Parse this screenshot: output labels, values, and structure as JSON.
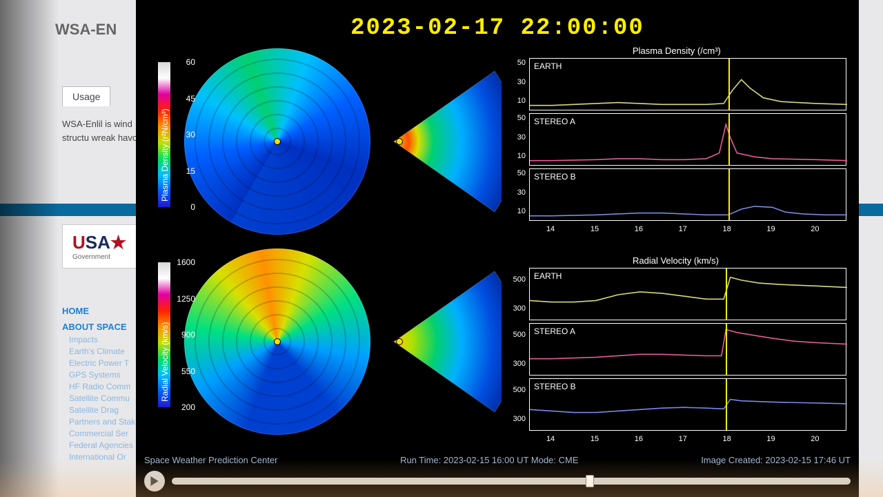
{
  "bg": {
    "header": "WSA-EN",
    "tab": "Usage",
    "text": "WSA-Enlil is\nwind structu\nwreak havo",
    "logo_usa": "USA",
    "logo_gov": "Government",
    "nav_l1_home": "HOME",
    "nav_l1_about": "ABOUT SPACE",
    "nav_items": [
      "Impacts",
      "Earth's Climate",
      "Electric Power T",
      "GPS Systems",
      "HF Radio Comm",
      "Satellite Commu",
      "Satellite Drag",
      "Partners and Stak",
      "Commercial Ser",
      "Federal Agencies",
      "International Or"
    ]
  },
  "timestamp": "2023-02-17  22:00:00",
  "panel_bg": "#000000",
  "timestamp_color": "#ffee00",
  "density": {
    "label": "Plasma Density (r²N/cm³)",
    "ticks": [
      0,
      15,
      30,
      45,
      60
    ],
    "colorbar_stops": [
      "#2218d0",
      "#0060ff",
      "#00c0ff",
      "#00e060",
      "#c0e000",
      "#ff9000",
      "#ff2000",
      "#e000a0",
      "#ffffff",
      "#d8d8d8"
    ]
  },
  "velocity": {
    "label": "Radial Velocity (km/s)",
    "ticks": [
      200,
      550,
      900,
      1250,
      1600
    ],
    "colorbar_stops": [
      "#2218d0",
      "#0060ff",
      "#00c0ff",
      "#00e060",
      "#c0e000",
      "#ff9000",
      "#ff2000",
      "#e000a0",
      "#ffffff",
      "#d8d8d8"
    ]
  },
  "density_group": {
    "title": "Plasma Density (/cm³)",
    "yticks": [
      10,
      30,
      50
    ],
    "xticks": [
      14,
      15,
      16,
      17,
      18,
      19,
      20
    ],
    "marker_x": 18.0,
    "panels": [
      {
        "label": "EARTH",
        "color": "#d9d97a",
        "pts": [
          [
            13.5,
            6
          ],
          [
            14,
            6
          ],
          [
            14.5,
            7
          ],
          [
            15,
            8
          ],
          [
            15.5,
            9
          ],
          [
            16,
            8
          ],
          [
            16.5,
            7
          ],
          [
            17,
            7
          ],
          [
            17.5,
            7
          ],
          [
            17.9,
            8
          ],
          [
            18.1,
            22
          ],
          [
            18.3,
            33
          ],
          [
            18.5,
            24
          ],
          [
            18.8,
            14
          ],
          [
            19.2,
            10
          ],
          [
            20,
            8
          ],
          [
            20.7,
            7
          ]
        ]
      },
      {
        "label": "STEREO A",
        "color": "#e85a9a",
        "pts": [
          [
            13.5,
            6
          ],
          [
            14,
            6
          ],
          [
            15,
            7
          ],
          [
            15.5,
            8
          ],
          [
            16,
            8
          ],
          [
            16.5,
            7
          ],
          [
            17,
            7
          ],
          [
            17.5,
            8
          ],
          [
            17.8,
            14
          ],
          [
            17.95,
            44
          ],
          [
            18.05,
            30
          ],
          [
            18.2,
            14
          ],
          [
            18.6,
            10
          ],
          [
            19,
            8
          ],
          [
            20,
            7
          ],
          [
            20.7,
            6
          ]
        ]
      },
      {
        "label": "STEREO B",
        "color": "#7a8ae8",
        "pts": [
          [
            13.5,
            6
          ],
          [
            14,
            6
          ],
          [
            15,
            7
          ],
          [
            15.5,
            8
          ],
          [
            16,
            9
          ],
          [
            16.5,
            9
          ],
          [
            17,
            8
          ],
          [
            17.5,
            7
          ],
          [
            18,
            7
          ],
          [
            18.3,
            13
          ],
          [
            18.6,
            16
          ],
          [
            19,
            15
          ],
          [
            19.3,
            10
          ],
          [
            19.7,
            8
          ],
          [
            20.2,
            7
          ],
          [
            20.7,
            7
          ]
        ]
      }
    ]
  },
  "velocity_group": {
    "title": "Radial Velocity (km/s)",
    "yticks": [
      300,
      500
    ],
    "xticks": [
      14,
      15,
      16,
      17,
      18,
      19,
      20
    ],
    "marker_x": 17.95,
    "panels": [
      {
        "label": "EARTH",
        "color": "#d9d97a",
        "pts": [
          [
            13.5,
            360
          ],
          [
            14,
            350
          ],
          [
            14.5,
            350
          ],
          [
            15,
            360
          ],
          [
            15.5,
            400
          ],
          [
            16,
            420
          ],
          [
            16.5,
            410
          ],
          [
            17,
            390
          ],
          [
            17.5,
            370
          ],
          [
            17.9,
            370
          ],
          [
            18.05,
            520
          ],
          [
            18.3,
            500
          ],
          [
            18.7,
            480
          ],
          [
            19.2,
            470
          ],
          [
            20,
            460
          ],
          [
            20.7,
            450
          ]
        ]
      },
      {
        "label": "STEREO A",
        "color": "#e85a9a",
        "pts": [
          [
            13.5,
            340
          ],
          [
            14,
            340
          ],
          [
            15,
            350
          ],
          [
            15.5,
            360
          ],
          [
            16,
            370
          ],
          [
            16.5,
            370
          ],
          [
            17,
            365
          ],
          [
            17.5,
            360
          ],
          [
            17.85,
            360
          ],
          [
            17.95,
            540
          ],
          [
            18.2,
            520
          ],
          [
            18.6,
            500
          ],
          [
            19,
            480
          ],
          [
            19.5,
            460
          ],
          [
            20,
            450
          ],
          [
            20.7,
            440
          ]
        ]
      },
      {
        "label": "STEREO B",
        "color": "#7a8ae8",
        "pts": [
          [
            13.5,
            370
          ],
          [
            14,
            360
          ],
          [
            14.5,
            350
          ],
          [
            15,
            350
          ],
          [
            15.5,
            360
          ],
          [
            16,
            370
          ],
          [
            16.5,
            380
          ],
          [
            17,
            385
          ],
          [
            17.5,
            380
          ],
          [
            17.9,
            375
          ],
          [
            18.05,
            440
          ],
          [
            18.3,
            430
          ],
          [
            18.7,
            425
          ],
          [
            19.2,
            420
          ],
          [
            20,
            415
          ],
          [
            20.7,
            410
          ]
        ]
      }
    ]
  },
  "footer": {
    "left": "Space Weather Prediction Center",
    "mid": "Run Time: 2023-02-15 16:00 UT   Mode: CME",
    "right": "Image Created: 2023-02-15 17:46 UT"
  },
  "playback": {
    "progress_pct": 61
  }
}
